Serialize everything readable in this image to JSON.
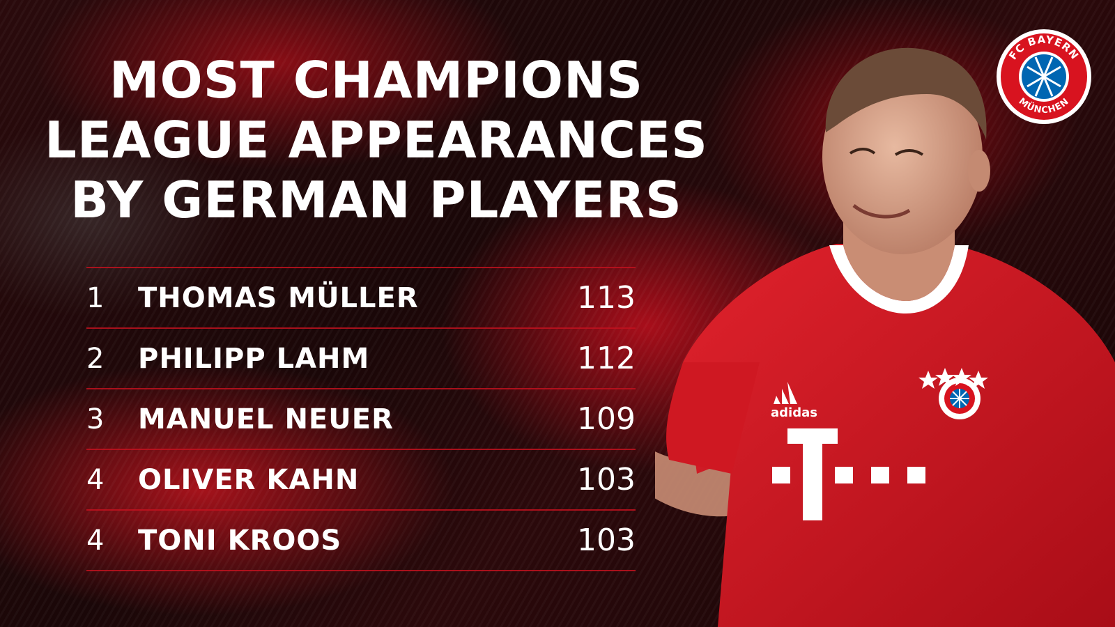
{
  "headline": {
    "lines": [
      "MOST CHAMPIONS",
      "LEAGUE APPEARANCES",
      "BY GERMAN PLAYERS"
    ]
  },
  "ranking": [
    {
      "rank": "1",
      "name": "THOMAS MÜLLER",
      "value": "113"
    },
    {
      "rank": "2",
      "name": "PHILIPP LAHM",
      "value": "112"
    },
    {
      "rank": "3",
      "name": "MANUEL NEUER",
      "value": "109"
    },
    {
      "rank": "4",
      "name": "OLIVER KAHN",
      "value": "103"
    },
    {
      "rank": "4",
      "name": "TONI KROOS",
      "value": "103"
    }
  ],
  "club_logo": {
    "text_top": "FC BAYERN",
    "text_bottom": "MÜNCHEN",
    "icon": "fc-bayern-crest"
  },
  "shirt": {
    "brand": "adidas",
    "sponsor_icon": "telekom-t-logo",
    "stars": 4
  },
  "colors": {
    "accent": "#c1121f",
    "shirt_red": "#d8131f",
    "text": "#ffffff",
    "logo_blue": "#0066b2"
  }
}
